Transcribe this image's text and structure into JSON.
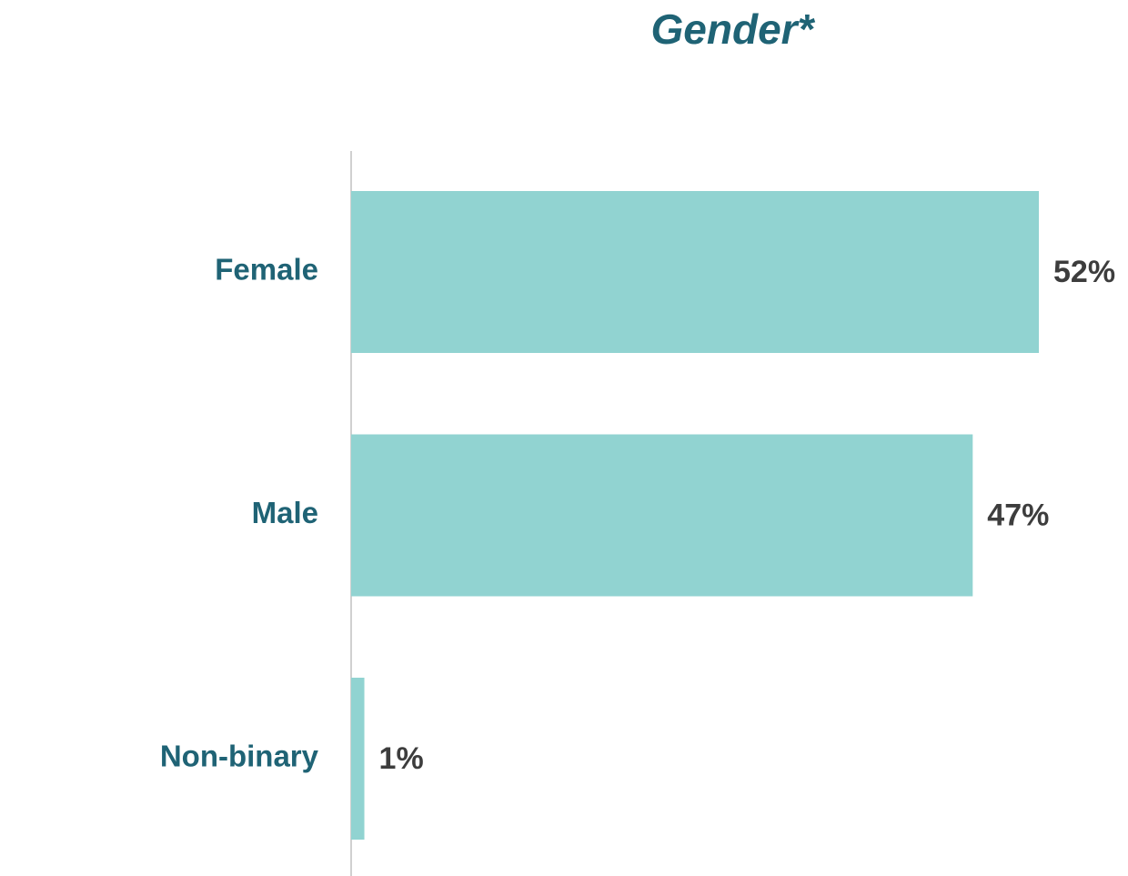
{
  "chart_data": {
    "type": "bar",
    "orientation": "horizontal",
    "title": "Gender*",
    "categories": [
      "Female",
      "Male",
      "Non-binary"
    ],
    "values": [
      52,
      47,
      1
    ],
    "value_labels": [
      "52%",
      "47%",
      "1%"
    ],
    "color": "#91d3d1"
  }
}
